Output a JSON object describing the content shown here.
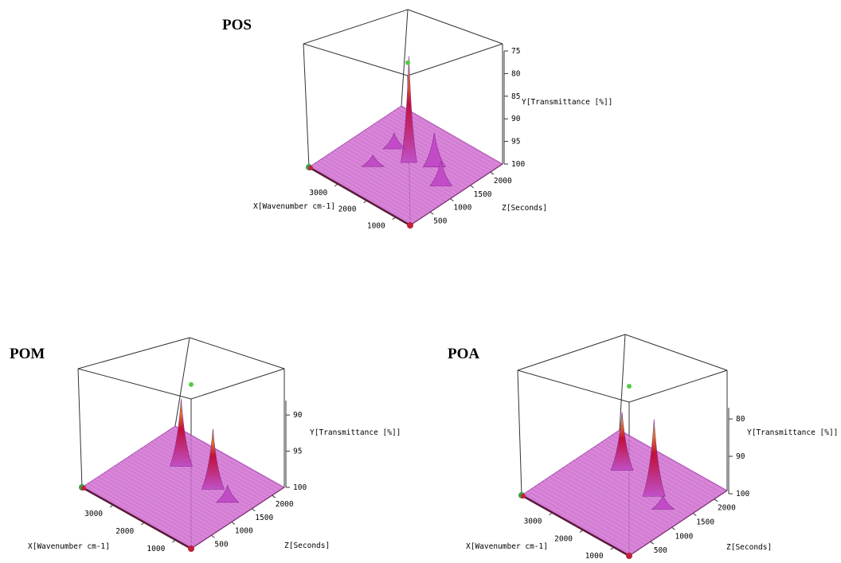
{
  "chart_data": [
    {
      "type": "surface",
      "title": "POS",
      "xlabel": "X[Wavenumber cm-1]",
      "ylabel": "Y[Transmittance [%]]",
      "zlabel": "Z[Seconds]",
      "x_ticks": [
        "3000",
        "2000",
        "1000"
      ],
      "y_ticks": [
        "75",
        "80",
        "85",
        "90",
        "95",
        "100"
      ],
      "z_ticks": [
        "500",
        "1000",
        "1500",
        "2000"
      ],
      "ylim": [
        100,
        75
      ],
      "peaks": [
        {
          "x": 2350,
          "z": 1300,
          "y": 77
        },
        {
          "x": 1750,
          "z": 1500,
          "y": 93
        },
        {
          "x": 1100,
          "z": 1200,
          "y": 95
        },
        {
          "x": 3000,
          "z": 1400,
          "y": 97
        },
        {
          "x": 2900,
          "z": 800,
          "y": 98
        }
      ],
      "colors": {
        "surface": "#cc66cc",
        "peak": "#c0103a",
        "top": "#55cc44"
      }
    },
    {
      "type": "surface",
      "title": "POM",
      "xlabel": "X[Wavenumber cm-1]",
      "ylabel": "Y[Transmittance [%]]",
      "zlabel": "Z[Seconds]",
      "x_ticks": [
        "3000",
        "2000",
        "1000"
      ],
      "y_ticks": [
        "90",
        "95",
        "100"
      ],
      "z_ticks": [
        "500",
        "1000",
        "1500",
        "2000"
      ],
      "ylim": [
        100,
        88
      ],
      "peaks": [
        {
          "x": 2900,
          "z": 1600,
          "y": 91
        },
        {
          "x": 1750,
          "z": 1500,
          "y": 92
        },
        {
          "x": 1150,
          "z": 1400,
          "y": 98
        }
      ],
      "colors": {
        "surface": "#cc66cc",
        "peak": "#c0103a",
        "top": "#55cc44"
      }
    },
    {
      "type": "surface",
      "title": "POA",
      "xlabel": "X[Wavenumber cm-1]",
      "ylabel": "Y[Transmittance [%]]",
      "zlabel": "Z[Seconds]",
      "x_ticks": [
        "3000",
        "2000",
        "1000"
      ],
      "y_ticks": [
        "80",
        "90",
        "100"
      ],
      "z_ticks": [
        "500",
        "1000",
        "1500",
        "2000"
      ],
      "ylim": [
        100,
        77
      ],
      "peaks": [
        {
          "x": 2950,
          "z": 1600,
          "y": 85
        },
        {
          "x": 1700,
          "z": 1450,
          "y": 80
        },
        {
          "x": 1200,
          "z": 1300,
          "y": 97
        }
      ],
      "colors": {
        "surface": "#cc66cc",
        "peak": "#c0103a",
        "top": "#55cc44"
      }
    }
  ]
}
